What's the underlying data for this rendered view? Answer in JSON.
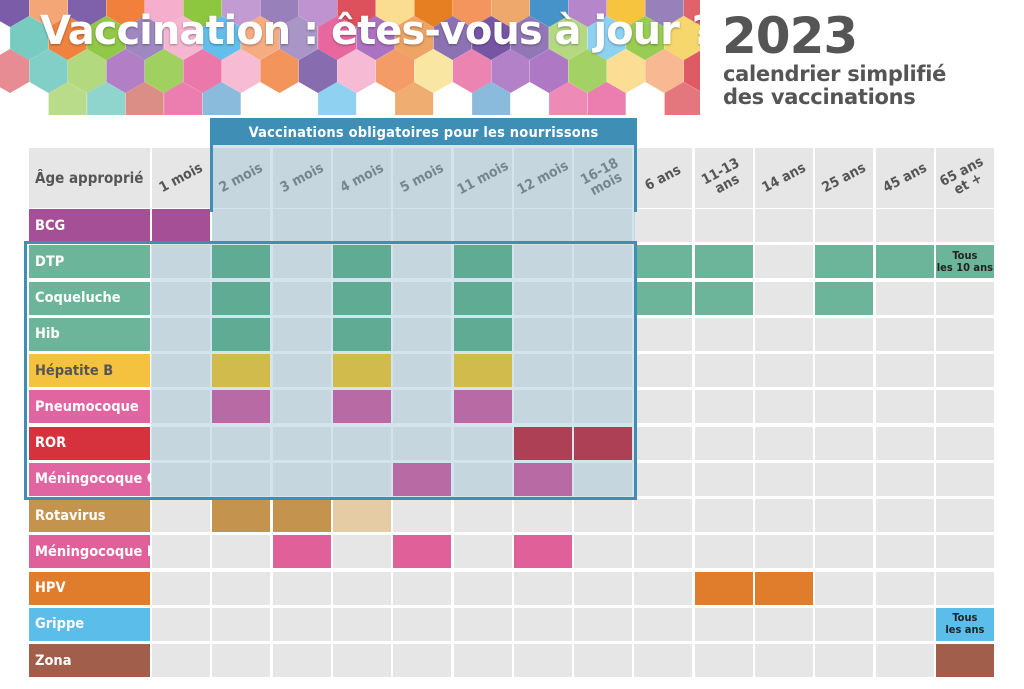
{
  "title": "Vaccination : êtes-vous à jour ?",
  "year": "2023",
  "subtitle_line1": "calendrier simplifié",
  "subtitle_line2": "des vaccinations",
  "mandatory_label": "Vaccinations obligatoires pour les nourrissons",
  "age_header": "Âge approprié",
  "colors": {
    "frame": "#3f8eb5",
    "grid_cell": "#e6e6e6",
    "text_grey": "#555555"
  },
  "columns": [
    "1 mois",
    "2 mois",
    "3 mois",
    "4 mois",
    "5 mois",
    "11 mois",
    "12 mois",
    "16-18\nmois",
    "6 ans",
    "11-13\nans",
    "14 ans",
    "25 ans",
    "45 ans",
    "65 ans\net +"
  ],
  "rows": [
    {
      "label": "BCG",
      "color": "#a54f97",
      "doses": [
        {
          "col": 0,
          "color": "#a54f97"
        }
      ]
    },
    {
      "label": "DTP",
      "color": "#6db59a",
      "doses": [
        {
          "col": 1,
          "color": "#5fab93"
        },
        {
          "col": 3,
          "color": "#5fab93"
        },
        {
          "col": 5,
          "color": "#5fab93"
        },
        {
          "col": 8,
          "color": "#6db59a"
        },
        {
          "col": 9,
          "color": "#6db59a"
        },
        {
          "col": 11,
          "color": "#6db59a"
        },
        {
          "col": 12,
          "color": "#6db59a"
        },
        {
          "col": 13,
          "color": "#6db59a",
          "note": "Tous\nles 10 ans"
        }
      ]
    },
    {
      "label": "Coqueluche",
      "color": "#6db59a",
      "doses": [
        {
          "col": 1,
          "color": "#5fab93"
        },
        {
          "col": 3,
          "color": "#5fab93"
        },
        {
          "col": 5,
          "color": "#5fab93"
        },
        {
          "col": 8,
          "color": "#6db59a"
        },
        {
          "col": 9,
          "color": "#6db59a"
        },
        {
          "col": 11,
          "color": "#6db59a"
        }
      ]
    },
    {
      "label": "Hib",
      "color": "#6db59a",
      "doses": [
        {
          "col": 1,
          "color": "#5fab93"
        },
        {
          "col": 3,
          "color": "#5fab93"
        },
        {
          "col": 5,
          "color": "#5fab93"
        }
      ]
    },
    {
      "label": "Hépatite B",
      "color": "#f5c240",
      "text_color": "#555555",
      "doses": [
        {
          "col": 1,
          "color": "#d0bb4c"
        },
        {
          "col": 3,
          "color": "#d0bb4c"
        },
        {
          "col": 5,
          "color": "#d0bb4c"
        }
      ]
    },
    {
      "label": "Pneumocoque",
      "color": "#e065a0",
      "doses": [
        {
          "col": 1,
          "color": "#b86aa5"
        },
        {
          "col": 3,
          "color": "#b86aa5"
        },
        {
          "col": 5,
          "color": "#b86aa5"
        }
      ]
    },
    {
      "label": "ROR",
      "color": "#d6323e",
      "doses": [
        {
          "col": 6,
          "color": "#ae4056"
        },
        {
          "col": 7,
          "color": "#ae4056"
        }
      ]
    },
    {
      "label": "Méningocoque C",
      "color": "#e065a0",
      "doses": [
        {
          "col": 4,
          "color": "#b86aa5"
        },
        {
          "col": 6,
          "color": "#b86aa5"
        }
      ]
    },
    {
      "label": "Rotavirus",
      "color": "#c4944e",
      "doses": [
        {
          "col": 1,
          "color": "#c4944e"
        },
        {
          "col": 2,
          "color": "#c4944e"
        },
        {
          "col": 3,
          "color": "#e6cca5"
        }
      ]
    },
    {
      "label": "Méningocoque B",
      "color": "#e0609a",
      "doses": [
        {
          "col": 2,
          "color": "#e0609a"
        },
        {
          "col": 4,
          "color": "#e0609a"
        },
        {
          "col": 6,
          "color": "#e0609a"
        }
      ]
    },
    {
      "label": "HPV",
      "color": "#e07d2c",
      "doses": [
        {
          "col": 9,
          "color": "#e07d2c"
        },
        {
          "col": 10,
          "color": "#e07d2c"
        }
      ]
    },
    {
      "label": "Grippe",
      "color": "#5bbde9",
      "doses": [
        {
          "col": 13,
          "color": "#5bbde9",
          "note": "Tous\nles ans"
        }
      ]
    },
    {
      "label": "Zona",
      "color": "#a05e4b",
      "doses": [
        {
          "col": 13,
          "color": "#a05e4b"
        }
      ]
    }
  ]
}
